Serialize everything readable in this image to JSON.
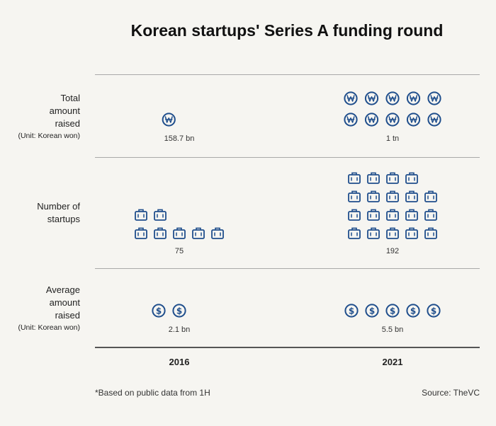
{
  "title": "Korean startups' Series A funding round",
  "chart_data": {
    "type": "pictogram",
    "categories": [
      "2016",
      "2021"
    ],
    "rows": [
      {
        "key": "total",
        "label": [
          "Total",
          "amount",
          "raised"
        ],
        "unit": "(Unit: Korean won)",
        "icon": "won-coin-icon",
        "icon_counts": [
          1.4,
          10
        ],
        "values": [
          158.7,
          1000
        ],
        "value_labels": [
          "158.7 bn",
          "1 tn"
        ]
      },
      {
        "key": "startups",
        "label": [
          "Number of",
          "startups"
        ],
        "unit": "",
        "icon": "briefcase-icon",
        "icon_counts": [
          7.5,
          19.2
        ],
        "values": [
          75,
          192
        ],
        "value_labels": [
          "75",
          "192"
        ]
      },
      {
        "key": "average",
        "label": [
          "Average",
          "amount",
          "raised"
        ],
        "unit": "(Unit: Korean won)",
        "icon": "dollar-coin-icon",
        "icon_counts": [
          2.1,
          5.5
        ],
        "values": [
          2.1,
          5.5
        ],
        "value_labels": [
          "2.1 bn",
          "5.5 bn"
        ]
      }
    ]
  },
  "footnote": "*Based on public data from 1H",
  "source": "Source: TheVC",
  "colors": {
    "icon": "#1f4e8c",
    "background": "#f6f5f1"
  }
}
